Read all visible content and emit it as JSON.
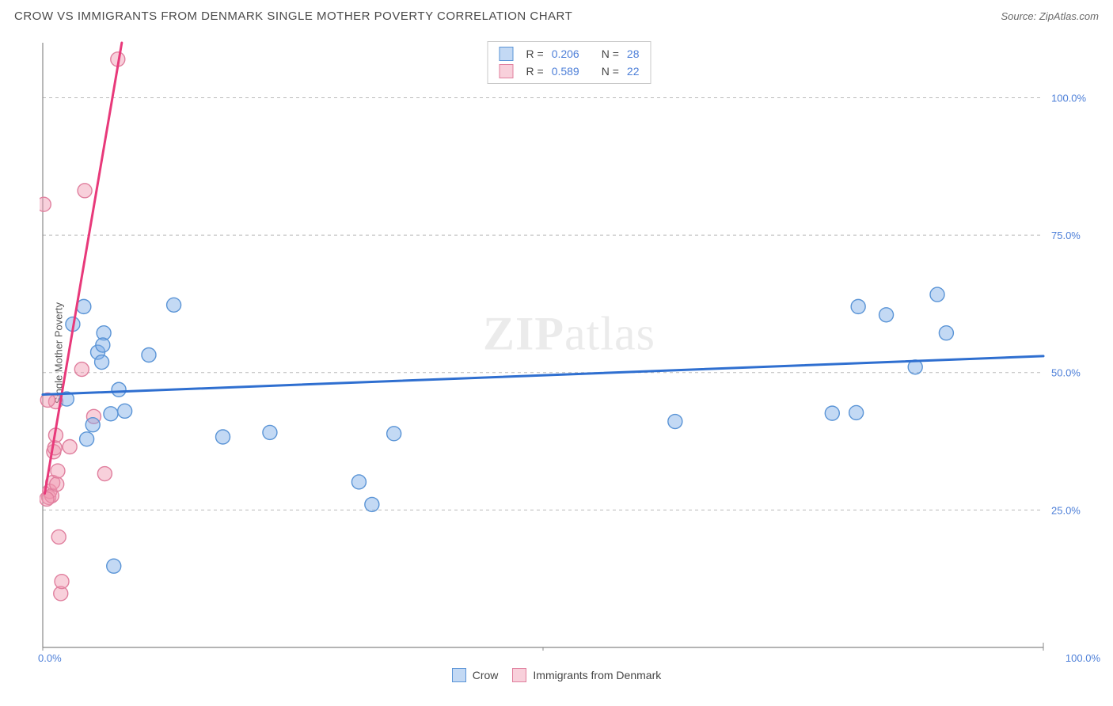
{
  "title": "CROW VS IMMIGRANTS FROM DENMARK SINGLE MOTHER POVERTY CORRELATION CHART",
  "source_label": "Source: ",
  "source_value": "ZipAtlas.com",
  "y_axis_label": "Single Mother Poverty",
  "watermark_bold": "ZIP",
  "watermark_rest": "atlas",
  "chart": {
    "type": "scatter",
    "background_color": "#ffffff",
    "grid_color": "#bbbbbb",
    "grid_dash": "4 4",
    "axis_color": "#888888",
    "tick_label_color": "#4d7fd8",
    "xlim": [
      0,
      100
    ],
    "ylim": [
      0,
      110
    ],
    "y_gridlines": [
      25,
      50,
      75,
      100
    ],
    "y_tick_labels": [
      "25.0%",
      "50.0%",
      "75.0%",
      "100.0%"
    ],
    "x_ticks": [
      0,
      50,
      100
    ],
    "x_tick_labels": [
      "0.0%",
      "",
      "100.0%"
    ],
    "x_minor_ticks": [
      50
    ],
    "marker_radius": 9,
    "marker_stroke_width": 1.4,
    "trend_line_width": 3,
    "series": [
      {
        "name": "Crow",
        "fill": "rgba(122,170,230,0.45)",
        "stroke": "#5a94d6",
        "trend_color": "#2f6fd0",
        "r": "0.206",
        "n": "28",
        "trend": {
          "x1": 0,
          "y1": 46,
          "x2": 100,
          "y2": 53
        },
        "points": [
          [
            2.4,
            45.2
          ],
          [
            3.0,
            58.8
          ],
          [
            4.1,
            62.0
          ],
          [
            5.5,
            53.7
          ],
          [
            5.9,
            51.9
          ],
          [
            6.1,
            57.2
          ],
          [
            6.8,
            42.5
          ],
          [
            7.6,
            46.9
          ],
          [
            7.1,
            14.8
          ],
          [
            4.4,
            37.9
          ],
          [
            10.6,
            53.2
          ],
          [
            13.1,
            62.3
          ],
          [
            18.0,
            38.3
          ],
          [
            22.7,
            39.1
          ],
          [
            31.6,
            30.1
          ],
          [
            32.9,
            26.0
          ],
          [
            35.1,
            38.9
          ],
          [
            63.2,
            41.1
          ],
          [
            78.9,
            42.6
          ],
          [
            81.3,
            42.7
          ],
          [
            81.5,
            62.0
          ],
          [
            84.3,
            60.5
          ],
          [
            87.2,
            51.0
          ],
          [
            89.4,
            64.2
          ],
          [
            90.3,
            57.2
          ],
          [
            5.0,
            40.5
          ],
          [
            8.2,
            43.0
          ],
          [
            6.0,
            55.0
          ]
        ]
      },
      {
        "name": "Immigrants from Denmark",
        "fill": "rgba(240,150,175,0.45)",
        "stroke": "#e07f9e",
        "trend_color": "#e8397a",
        "r": "0.589",
        "n": "22",
        "trend": {
          "x1": 0.2,
          "y1": 28,
          "x2": 7.9,
          "y2": 110
        },
        "points": [
          [
            0.6,
            27.3
          ],
          [
            0.7,
            28.4
          ],
          [
            0.9,
            27.6
          ],
          [
            1.0,
            30.0
          ],
          [
            1.1,
            35.6
          ],
          [
            1.2,
            36.3
          ],
          [
            1.3,
            38.6
          ],
          [
            1.3,
            44.7
          ],
          [
            1.4,
            29.7
          ],
          [
            1.5,
            32.1
          ],
          [
            0.5,
            45.0
          ],
          [
            1.6,
            20.1
          ],
          [
            1.8,
            9.8
          ],
          [
            1.9,
            12.0
          ],
          [
            2.7,
            36.5
          ],
          [
            3.9,
            50.6
          ],
          [
            4.2,
            83.1
          ],
          [
            5.1,
            42.0
          ],
          [
            6.2,
            31.6
          ],
          [
            0.1,
            80.6
          ],
          [
            7.5,
            107.0
          ],
          [
            0.4,
            27.0
          ]
        ]
      }
    ]
  },
  "legend_top": {
    "r_label": "R =",
    "n_label": "N ="
  },
  "legend_bottom": {
    "series1": "Crow",
    "series2": "Immigrants from Denmark"
  }
}
